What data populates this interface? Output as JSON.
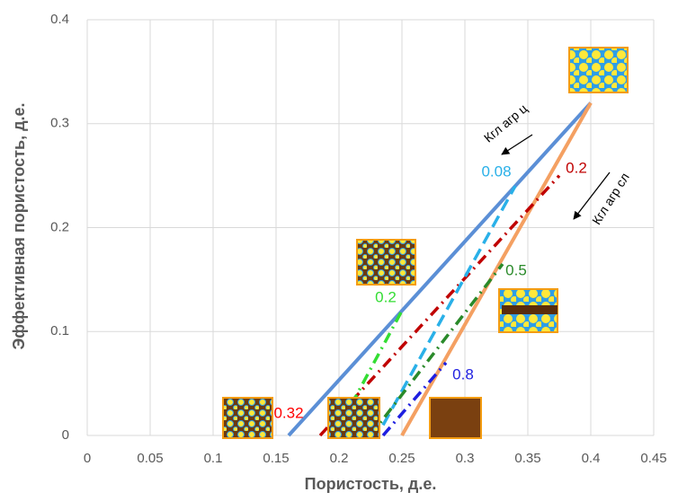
{
  "chart_data": {
    "type": "line",
    "x_label": "Пористость, д.е.",
    "y_label": "Эффективная пористость, д.е.",
    "xlim": [
      0,
      0.45
    ],
    "xticks": [
      0,
      0.05,
      0.1,
      0.15,
      0.2,
      0.25,
      0.3,
      0.35,
      0.4,
      0.45
    ],
    "ylim": [
      0,
      0.4
    ],
    "yticks": [
      0,
      0.1,
      0.2,
      0.3,
      0.4
    ],
    "grid": true,
    "series": [
      {
        "color": "#5b8fd6",
        "style": "solid",
        "x": [
          0.16,
          0.4
        ],
        "values": [
          0,
          0.32
        ]
      },
      {
        "color": "#f4a062",
        "style": "solid",
        "x": [
          0.25,
          0.4
        ],
        "values": [
          0,
          0.32
        ]
      },
      {
        "color": "#c00000",
        "style": "dashdot",
        "label": "0.2",
        "x": [
          0.185,
          0.375
        ],
        "values": [
          0,
          0.25
        ]
      },
      {
        "color": "#29b0e8",
        "style": "dashed",
        "label": "0.08",
        "x": [
          0.235,
          0.34
        ],
        "values": [
          0.01,
          0.24
        ]
      },
      {
        "color": "#33dd33",
        "style": "dashdot",
        "label": "0.2",
        "x": [
          0.21,
          0.25
        ],
        "values": [
          0.03,
          0.12
        ]
      },
      {
        "color": "#2a8a2a",
        "style": "dashdot",
        "label": "0.5",
        "x": [
          0.225,
          0.33
        ],
        "values": [
          0,
          0.165
        ]
      },
      {
        "color": "#1f1fe0",
        "style": "dashdot",
        "label": "0.8",
        "x": [
          0.235,
          0.285
        ],
        "values": [
          0,
          0.07
        ]
      }
    ],
    "annotations": [
      "Кгл агр ц",
      "Кгл агр сл",
      "0.32"
    ]
  }
}
